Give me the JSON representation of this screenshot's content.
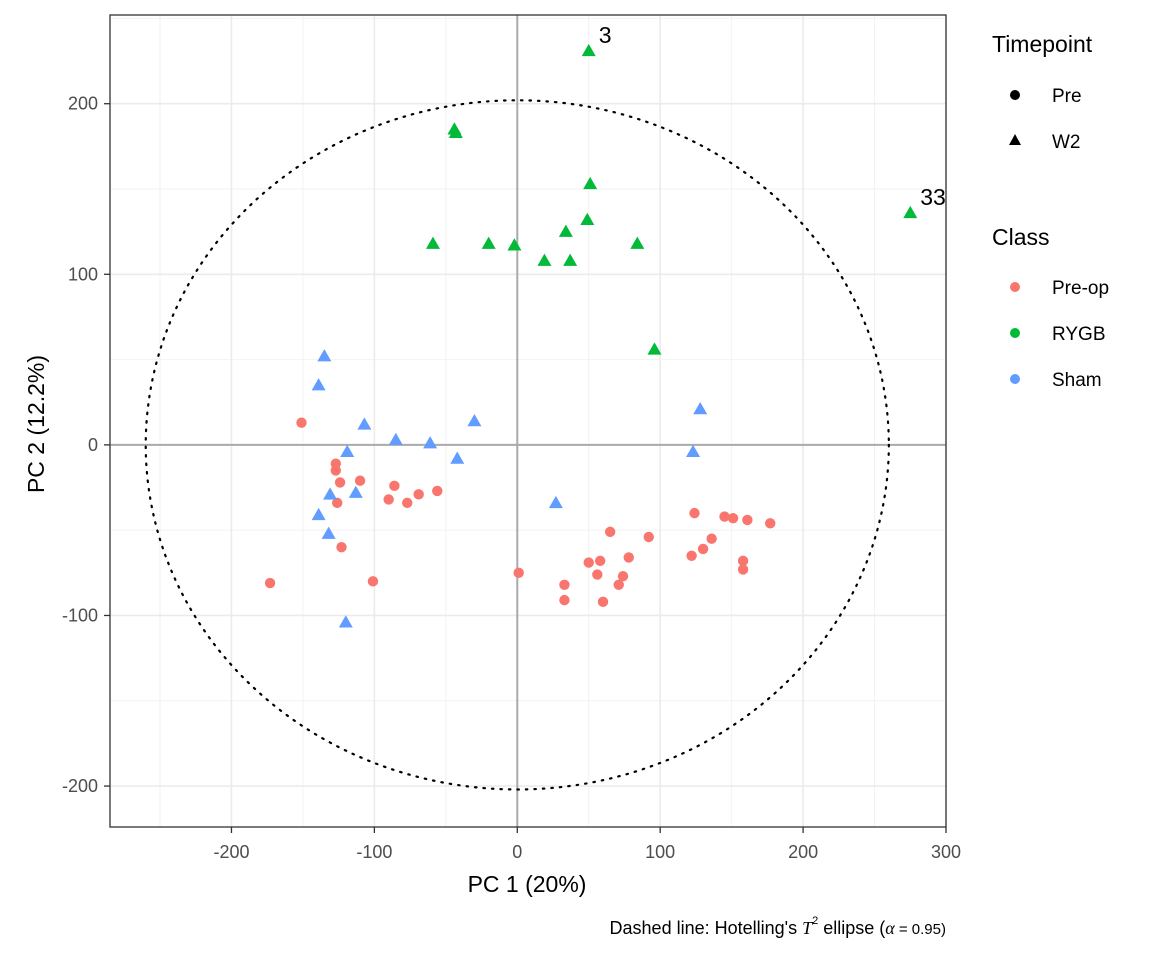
{
  "chart_data": {
    "type": "scatter",
    "xlabel": "PC 1 (20%)",
    "ylabel": "PC 2 (12.2%)",
    "xlim": [
      -285,
      300
    ],
    "ylim": [
      -224,
      252
    ],
    "x_ticks": [
      -200,
      -100,
      0,
      100,
      200,
      300
    ],
    "y_ticks": [
      -200,
      -100,
      0,
      100,
      200
    ],
    "grid": true,
    "reference_lines": {
      "x": 0,
      "y": 0
    },
    "ellipse": {
      "style": "dotted",
      "center": [
        0,
        0
      ],
      "radius_x": 260,
      "radius_y": 202
    },
    "caption": {
      "prefix": "Dashed line: Hotelling's ",
      "t": "T",
      "sup": "2",
      "middle": " ellipse (",
      "alpha": "α",
      "suffix": " = 0.95)"
    },
    "legend_placement": "right",
    "legend": {
      "timepoint": {
        "title": "Timepoint",
        "items": [
          {
            "label": "Pre",
            "shape": "circle"
          },
          {
            "label": "W2",
            "shape": "triangle"
          }
        ]
      },
      "class": {
        "title": "Class",
        "items": [
          {
            "label": "Pre-op",
            "color": "#F8766D"
          },
          {
            "label": "RYGB",
            "color": "#00BA38"
          },
          {
            "label": "Sham",
            "color": "#619CFF"
          }
        ]
      }
    },
    "annotations": [
      {
        "text": "3",
        "x": 50,
        "y": 231
      },
      {
        "text": "33",
        "x": 275,
        "y": 136
      }
    ],
    "series": [
      {
        "name": "Pre-op",
        "shape": "circle",
        "color": "#F8766D",
        "points": [
          [
            -151,
            13
          ],
          [
            -173,
            -81
          ],
          [
            -127,
            -11
          ],
          [
            -127,
            -15
          ],
          [
            -124,
            -22
          ],
          [
            -126,
            -34
          ],
          [
            -123,
            -60
          ],
          [
            -110,
            -21
          ],
          [
            -101,
            -80
          ],
          [
            -90,
            -32
          ],
          [
            -86,
            -24
          ],
          [
            -77,
            -34
          ],
          [
            -69,
            -29
          ],
          [
            -56,
            -27
          ],
          [
            1,
            -75
          ],
          [
            33,
            -82
          ],
          [
            33,
            -91
          ],
          [
            50,
            -69
          ],
          [
            56,
            -76
          ],
          [
            58,
            -68
          ],
          [
            60,
            -92
          ],
          [
            65,
            -51
          ],
          [
            71,
            -82
          ],
          [
            74,
            -77
          ],
          [
            78,
            -66
          ],
          [
            92,
            -54
          ],
          [
            122,
            -65
          ],
          [
            124,
            -40
          ],
          [
            130,
            -61
          ],
          [
            136,
            -55
          ],
          [
            145,
            -42
          ],
          [
            151,
            -43
          ],
          [
            158,
            -68
          ],
          [
            158,
            -73
          ],
          [
            161,
            -44
          ],
          [
            177,
            -46
          ]
        ]
      },
      {
        "name": "RYGB",
        "shape": "triangle",
        "color": "#00BA38",
        "points": [
          [
            -59,
            118
          ],
          [
            -44,
            185
          ],
          [
            -43,
            183
          ],
          [
            -20,
            118
          ],
          [
            -2,
            117
          ],
          [
            19,
            108
          ],
          [
            34,
            125
          ],
          [
            37,
            108
          ],
          [
            49,
            132
          ],
          [
            50,
            231
          ],
          [
            51,
            153
          ],
          [
            84,
            118
          ],
          [
            96,
            56
          ],
          [
            275,
            136
          ]
        ]
      },
      {
        "name": "Sham",
        "shape": "triangle",
        "color": "#619CFF",
        "points": [
          [
            -135,
            52
          ],
          [
            -139,
            35
          ],
          [
            -139,
            -41
          ],
          [
            -131,
            -29
          ],
          [
            -132,
            -52
          ],
          [
            -119,
            -4
          ],
          [
            -120,
            -104
          ],
          [
            -113,
            -28
          ],
          [
            -107,
            12
          ],
          [
            -85,
            3
          ],
          [
            -61,
            1
          ],
          [
            -42,
            -8
          ],
          [
            -30,
            14
          ],
          [
            27,
            -34
          ],
          [
            123,
            -4
          ],
          [
            128,
            21
          ]
        ]
      }
    ]
  }
}
